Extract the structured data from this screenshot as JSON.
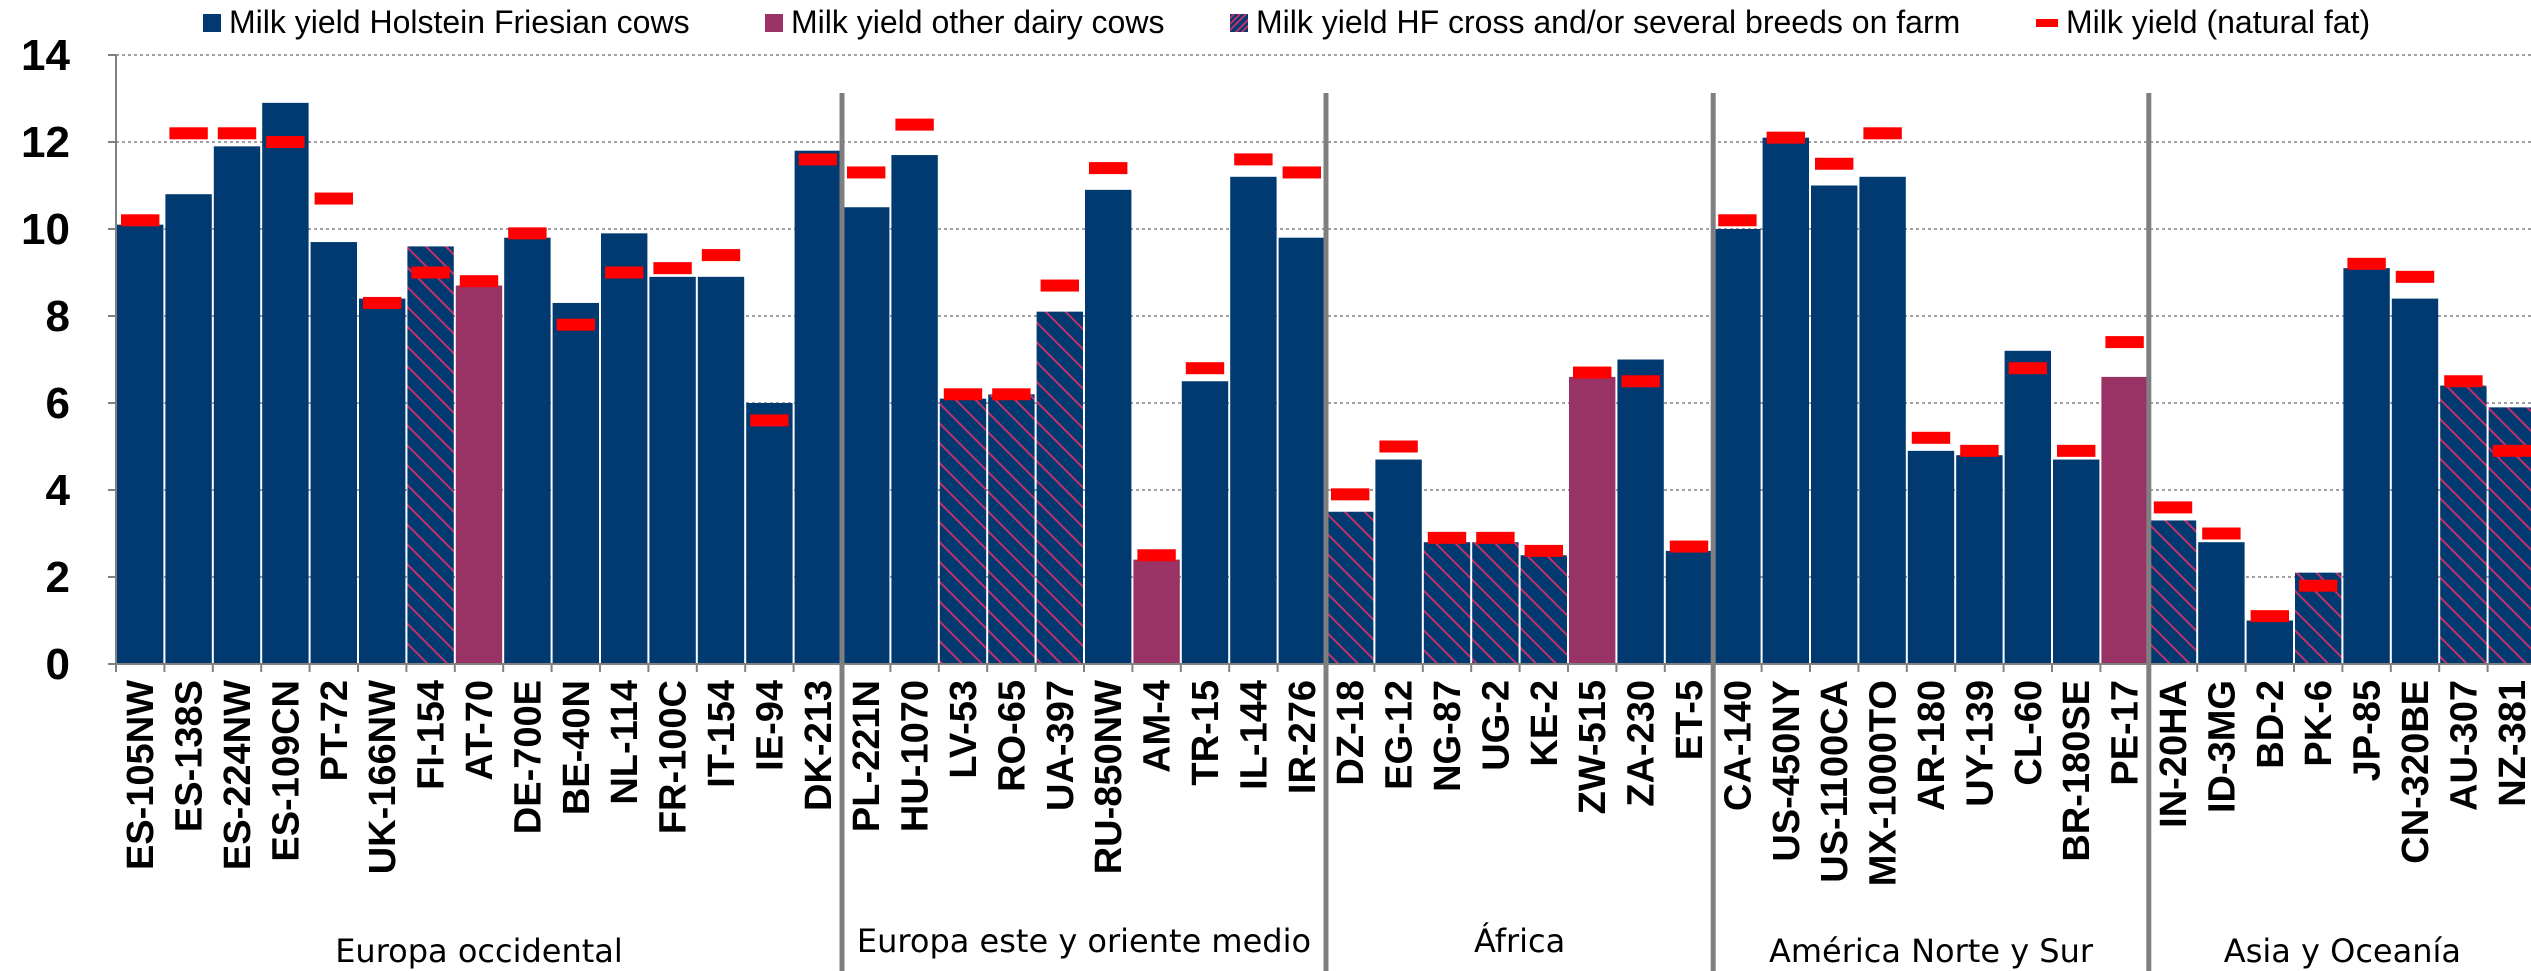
{
  "colors": {
    "holstein": "#003a70",
    "other": "#993366",
    "hatch_line": "#c0306a",
    "natural_fat": "#ff0000",
    "grid": "#808080",
    "separator": "#7f7f7f"
  },
  "legend": {
    "holstein": "Milk yield Holstein Friesian cows",
    "other": "Milk yield other dairy cows",
    "cross": "Milk yield HF cross and/or several breeds on farm",
    "natural_fat": "Milk yield (natural fat)"
  },
  "chart_data": {
    "type": "bar",
    "title": "",
    "xlabel": "",
    "ylabel": "",
    "ylim": [
      0,
      14
    ],
    "yticks": [
      0,
      2,
      4,
      6,
      8,
      10,
      12,
      14
    ],
    "grid": "horizontal dotted",
    "legend_position": "top",
    "categories": [
      "ES-105NW",
      "ES-138S",
      "ES-224NW",
      "ES-109CN",
      "PT-72",
      "UK-166NW",
      "FI-154",
      "AT-70",
      "DE-700E",
      "BE-40N",
      "NL-114",
      "FR-100C",
      "IT-154",
      "IE-94",
      "DK-213",
      "PL-221N",
      "HU-1070",
      "LV-53",
      "RO-65",
      "UA-397",
      "RU-850NW",
      "AM-4",
      "TR-15",
      "IL-144",
      "IR-276",
      "DZ-18",
      "EG-12",
      "NG-87",
      "UG-2",
      "KE-2",
      "ZW-515",
      "ZA-230",
      "ET-5",
      "CA-140",
      "US-450NY",
      "US-1100CA",
      "MX-1000TO",
      "AR-180",
      "UY-139",
      "CL-60",
      "BR-180SE",
      "PE-17",
      "IN-20HA",
      "ID-3MG",
      "BD-2",
      "PK-6",
      "JP-85",
      "CN-320BE",
      "AU-307",
      "NZ-381"
    ],
    "bar_types": [
      "holstein",
      "holstein",
      "holstein",
      "holstein",
      "holstein",
      "holstein",
      "cross",
      "other",
      "holstein",
      "holstein",
      "holstein",
      "holstein",
      "holstein",
      "holstein",
      "holstein",
      "holstein",
      "holstein",
      "cross",
      "cross",
      "cross",
      "holstein",
      "other",
      "holstein",
      "holstein",
      "holstein",
      "cross",
      "holstein",
      "cross",
      "cross",
      "cross",
      "other",
      "holstein",
      "holstein",
      "holstein",
      "holstein",
      "holstein",
      "holstein",
      "holstein",
      "holstein",
      "holstein",
      "holstein",
      "other",
      "cross",
      "holstein",
      "holstein",
      "cross",
      "holstein",
      "holstein",
      "cross",
      "cross"
    ],
    "series": [
      {
        "name": "Milk yield",
        "values": [
          10.1,
          10.8,
          11.9,
          12.9,
          9.7,
          8.4,
          9.6,
          8.7,
          9.8,
          8.3,
          9.9,
          8.9,
          8.9,
          6.0,
          11.8,
          10.5,
          11.7,
          6.1,
          6.2,
          8.1,
          10.9,
          2.4,
          6.5,
          11.2,
          9.8,
          3.5,
          4.7,
          2.8,
          2.8,
          2.5,
          6.6,
          7.0,
          2.6,
          10.0,
          12.1,
          11.0,
          11.2,
          4.9,
          4.8,
          7.2,
          4.7,
          6.6,
          3.3,
          2.8,
          1.0,
          2.1,
          9.1,
          8.4,
          6.4,
          5.9
        ]
      },
      {
        "name": "Milk yield (natural fat)",
        "values": [
          10.2,
          12.2,
          12.2,
          12.0,
          10.7,
          8.3,
          9.0,
          8.8,
          9.9,
          7.8,
          9.0,
          9.1,
          9.4,
          5.6,
          11.6,
          11.3,
          12.4,
          6.2,
          6.2,
          8.7,
          11.4,
          2.5,
          6.8,
          11.6,
          11.3,
          3.9,
          5.0,
          2.9,
          2.9,
          2.6,
          6.7,
          6.5,
          2.7,
          10.2,
          12.1,
          11.5,
          12.2,
          5.2,
          4.9,
          6.8,
          4.9,
          7.4,
          3.6,
          3.0,
          1.1,
          1.8,
          9.2,
          8.9,
          6.5,
          4.9
        ]
      }
    ],
    "regions": [
      {
        "label": "Europa occidental",
        "start": 0,
        "end": 14
      },
      {
        "label": "Europa este y oriente medio",
        "start": 15,
        "end": 24
      },
      {
        "label": "África",
        "start": 25,
        "end": 32
      },
      {
        "label": "América Norte y Sur",
        "start": 33,
        "end": 41
      },
      {
        "label": "Asia y Oceanía",
        "start": 42,
        "end": 49
      }
    ]
  }
}
